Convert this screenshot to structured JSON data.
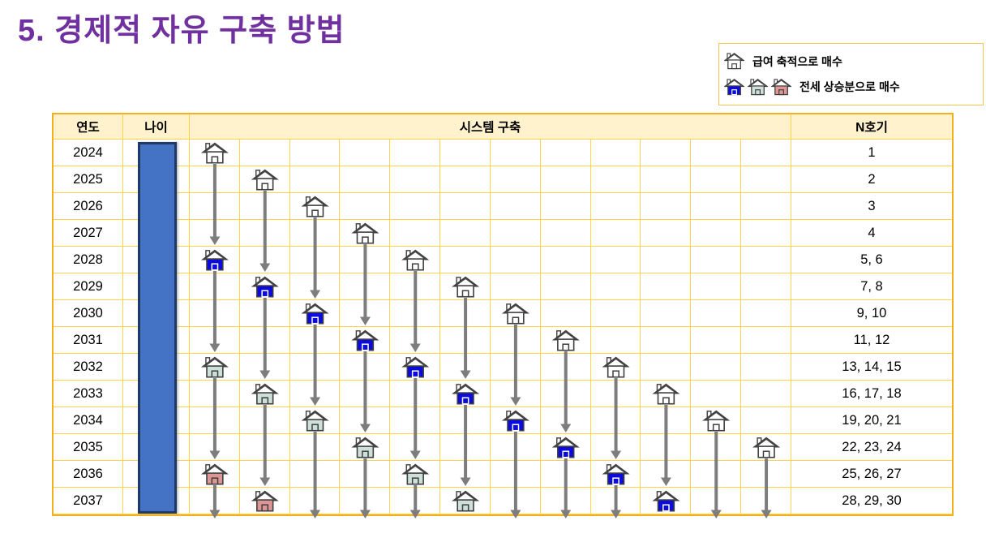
{
  "title": "5. 경제적 자유 구축 방법",
  "legend": {
    "salary": {
      "icon": "house-white-icon",
      "label": "급여 축적으로 매수"
    },
    "jeonse": {
      "icons": [
        "house-blue-icon",
        "house-green-icon",
        "house-red-icon"
      ],
      "label": "전세 상승분으로 매수"
    }
  },
  "table": {
    "headers": {
      "year": "연도",
      "age": "나이",
      "system": "시스템 구축",
      "unit": "N호기"
    },
    "rows": [
      {
        "year": "2024",
        "unit": "1"
      },
      {
        "year": "2025",
        "unit": "2"
      },
      {
        "year": "2026",
        "unit": "3"
      },
      {
        "year": "2027",
        "unit": "4"
      },
      {
        "year": "2028",
        "unit": "5, 6"
      },
      {
        "year": "2029",
        "unit": "7, 8"
      },
      {
        "year": "2030",
        "unit": "9, 10"
      },
      {
        "year": "2031",
        "unit": "11, 12"
      },
      {
        "year": "2032",
        "unit": "13, 14, 15"
      },
      {
        "year": "2033",
        "unit": "16, 17, 18"
      },
      {
        "year": "2034",
        "unit": "19, 20, 21"
      },
      {
        "year": "2035",
        "unit": "22, 23, 24"
      },
      {
        "year": "2036",
        "unit": "25, 26, 27"
      },
      {
        "year": "2037",
        "unit": "28, 29, 30"
      }
    ],
    "system_columns": [
      {
        "houses": [
          {
            "year": 2024,
            "color": "white"
          },
          {
            "year": 2028,
            "color": "blue"
          },
          {
            "year": 2032,
            "color": "green"
          },
          {
            "year": 2036,
            "color": "red"
          }
        ],
        "arrow_to_bottom": true
      },
      {
        "houses": [
          {
            "year": 2025,
            "color": "white"
          },
          {
            "year": 2029,
            "color": "blue"
          },
          {
            "year": 2033,
            "color": "green"
          },
          {
            "year": 2037,
            "color": "red"
          }
        ],
        "arrow_to_bottom": false
      },
      {
        "houses": [
          {
            "year": 2026,
            "color": "white"
          },
          {
            "year": 2030,
            "color": "blue"
          },
          {
            "year": 2034,
            "color": "green"
          }
        ],
        "arrow_to_bottom": true
      },
      {
        "houses": [
          {
            "year": 2027,
            "color": "white"
          },
          {
            "year": 2031,
            "color": "blue"
          },
          {
            "year": 2035,
            "color": "green"
          }
        ],
        "arrow_to_bottom": true
      },
      {
        "houses": [
          {
            "year": 2028,
            "color": "white"
          },
          {
            "year": 2032,
            "color": "blue"
          },
          {
            "year": 2036,
            "color": "green"
          }
        ],
        "arrow_to_bottom": true
      },
      {
        "houses": [
          {
            "year": 2029,
            "color": "white"
          },
          {
            "year": 2033,
            "color": "blue"
          },
          {
            "year": 2037,
            "color": "green"
          }
        ],
        "arrow_to_bottom": false
      },
      {
        "houses": [
          {
            "year": 2030,
            "color": "white"
          },
          {
            "year": 2034,
            "color": "blue"
          }
        ],
        "arrow_to_bottom": true
      },
      {
        "houses": [
          {
            "year": 2031,
            "color": "white"
          },
          {
            "year": 2035,
            "color": "blue"
          }
        ],
        "arrow_to_bottom": true
      },
      {
        "houses": [
          {
            "year": 2032,
            "color": "white"
          },
          {
            "year": 2036,
            "color": "blue"
          }
        ],
        "arrow_to_bottom": true
      },
      {
        "houses": [
          {
            "year": 2033,
            "color": "white"
          },
          {
            "year": 2037,
            "color": "blue"
          }
        ],
        "arrow_to_bottom": false
      },
      {
        "houses": [
          {
            "year": 2034,
            "color": "white"
          }
        ],
        "arrow_to_bottom": true
      },
      {
        "houses": [
          {
            "year": 2035,
            "color": "white"
          }
        ],
        "arrow_to_bottom": true
      }
    ],
    "start_year": 2024
  },
  "colors": {
    "title": "#7030A0",
    "table_border": "#F2B01E",
    "grid_line": "#FFD24A",
    "header_bg": "#FFF2CC",
    "age_bar_fill": "#4472C4",
    "age_bar_border": "#1F3864",
    "arrow": "#7D7D7D",
    "house_outline": "#3F3F3F",
    "house_white": "#FFFFFF",
    "house_blue": "#0B0BDD",
    "house_green": "#CDE0DA",
    "house_red": "#DE9694"
  }
}
